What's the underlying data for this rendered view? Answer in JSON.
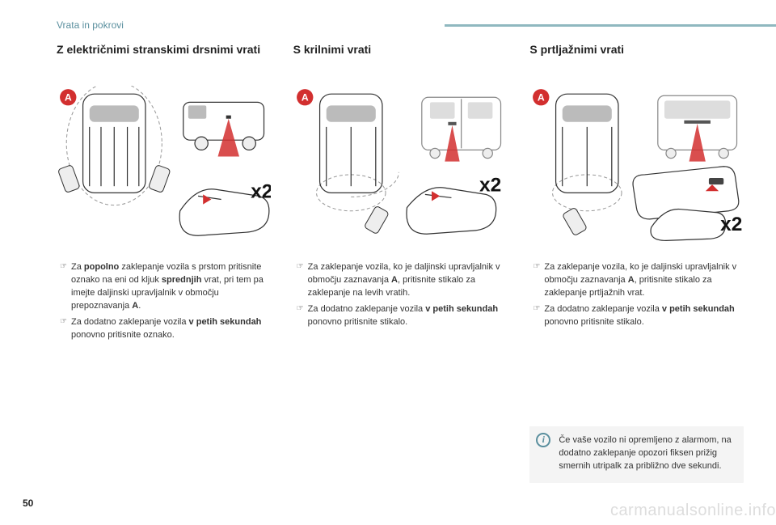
{
  "section_title": "Vrata in pokrovi",
  "page_number": "50",
  "watermark": "carmanualsonline.info",
  "columns": [
    {
      "title": "Z električnimi stranskimi drsnimi vrati",
      "bullets": [
        "Za <b>popolno</b> zaklepanje vozila s prstom pritisnite oznako na eni od kljuk <b>sprednjih</b> vrat, pri tem pa imejte daljinski upravljalnik v območju prepoznavanja <b>A</b>.",
        "Za dodatno zaklepanje vozila <b>v petih sekundah</b> ponovno pritisnite oznako."
      ]
    },
    {
      "title": "S krilnimi vrati",
      "bullets": [
        "Za zaklepanje vozila, ko je daljinski upravljalnik v območju zaznavanja <b>A</b>, pritisnite stikalo za zaklepanje na levih vratih.",
        "Za dodatno zaklepanje vozila <b>v petih sekundah</b> ponovno pritisnite stikalo."
      ]
    },
    {
      "title": "S prtljažnimi vrati",
      "bullets": [
        "Za zaklepanje vozila, ko je daljinski upravljalnik v območju zaznavanja <b>A</b>, pritisnite stikalo za zaklepanje prtljažnih vrat.",
        "Za dodatno zaklepanje vozila <b>v petih sekundah</b> ponovno pritisnite stikalo."
      ],
      "info": "Če vaše vozilo ni opremljeno z alarmom, na dodatno zaklepanje opozori fiksen prižig smernih utripalk za približno dve sekundi."
    }
  ],
  "colors": {
    "accent": "#5a8f9e",
    "badge": "#d22f2f"
  },
  "x2_label": "x2"
}
